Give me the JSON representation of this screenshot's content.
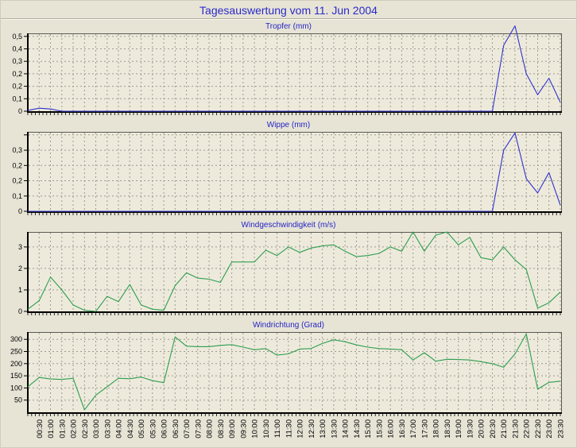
{
  "page": {
    "title": "Tagesauswertung vom 11. Jun 2004",
    "background": "#e7e4d6"
  },
  "colors": {
    "rain_line": "#3232cc",
    "wind_line": "#2f9e4f",
    "title_blue": "#2424c4",
    "grid": "#9c9c8f",
    "plot_bg": "#edeadc",
    "axis": "#000000"
  },
  "x_axis": {
    "start_time": "00:00",
    "interval_minutes": 30,
    "labels": [
      "00:30",
      "01:00",
      "01:30",
      "02:00",
      "02:30",
      "03:00",
      "03:30",
      "04:00",
      "04:30",
      "05:00",
      "05:30",
      "06:00",
      "06:30",
      "07:00",
      "07:30",
      "08:00",
      "08:30",
      "09:00",
      "09:30",
      "10:00",
      "10:30",
      "11:00",
      "11:30",
      "12:00",
      "12:30",
      "13:00",
      "13:30",
      "14:00",
      "14:30",
      "15:00",
      "15:30",
      "16:00",
      "16:30",
      "17:00",
      "17:30",
      "18:00",
      "18:30",
      "19:00",
      "19:30",
      "20:00",
      "20:30",
      "21:00",
      "21:30",
      "22:00",
      "22:30",
      "23:00",
      "23:30"
    ]
  },
  "chart_data": [
    {
      "type": "line",
      "title": "Tropfer (mm)",
      "color_key": "rain_line",
      "ymax": 0.52,
      "yticks": [
        {
          "v": 0,
          "l": "0"
        },
        {
          "v": 0.0833,
          "l": "0,1"
        },
        {
          "v": 0.1667,
          "l": "0,2"
        },
        {
          "v": 0.25,
          "l": "0,2"
        },
        {
          "v": 0.3333,
          "l": "0,3"
        },
        {
          "v": 0.4167,
          "l": "0,4"
        },
        {
          "v": 0.5,
          "l": "0,5"
        }
      ],
      "values": [
        0.005,
        0.02,
        0.015,
        0,
        0,
        0,
        0,
        0,
        0,
        0,
        0,
        0,
        0,
        0,
        0,
        0,
        0,
        0,
        0,
        0,
        0,
        0,
        0,
        0,
        0,
        0,
        0,
        0,
        0,
        0,
        0,
        0,
        0,
        0,
        0,
        0,
        0,
        0,
        0,
        0,
        0,
        0,
        0.44,
        0.57,
        0.25,
        0.11,
        0.22,
        0.06
      ]
    },
    {
      "type": "line",
      "title": "Wippe (mm)",
      "color_key": "rain_line",
      "ymax": 0.39,
      "yticks": [
        {
          "v": 0,
          "l": "0"
        },
        {
          "v": 0.075,
          "l": "0,1"
        },
        {
          "v": 0.15,
          "l": "0,2"
        },
        {
          "v": 0.225,
          "l": "0,2"
        },
        {
          "v": 0.3,
          "l": "0,3"
        },
        {
          "v": 0.375,
          "l": ""
        }
      ],
      "values": [
        0,
        0,
        0,
        0,
        0,
        0,
        0,
        0,
        0,
        0,
        0,
        0,
        0,
        0,
        0,
        0,
        0,
        0,
        0,
        0,
        0,
        0,
        0,
        0,
        0,
        0,
        0,
        0,
        0,
        0,
        0,
        0,
        0,
        0,
        0,
        0,
        0,
        0,
        0,
        0,
        0,
        0,
        0.3,
        0.385,
        0.16,
        0.09,
        0.19,
        0.03
      ]
    },
    {
      "type": "line",
      "title": "Windgeschwindigkeit (m/s)",
      "color_key": "wind_line",
      "ymax": 3.7,
      "yticks": [
        {
          "v": 0,
          "l": "0"
        },
        {
          "v": 1,
          "l": "1"
        },
        {
          "v": 2,
          "l": "2"
        },
        {
          "v": 3,
          "l": "3"
        }
      ],
      "values": [
        0.1,
        0.5,
        1.6,
        1.0,
        0.3,
        0.05,
        0,
        0.7,
        0.45,
        1.25,
        0.3,
        0.1,
        0.05,
        1.2,
        1.8,
        1.55,
        1.5,
        1.35,
        2.3,
        2.3,
        2.3,
        2.85,
        2.6,
        3.0,
        2.75,
        2.95,
        3.05,
        3.1,
        2.8,
        2.55,
        2.6,
        2.7,
        3.0,
        2.8,
        3.7,
        2.8,
        3.55,
        3.7,
        3.1,
        3.45,
        2.5,
        2.4,
        3.0,
        2.4,
        1.95,
        0.15,
        0.4,
        0.9
      ]
    },
    {
      "type": "line",
      "title": "Windrichtung (Grad)",
      "color_key": "wind_line",
      "ymax": 330,
      "yticks": [
        {
          "v": 50,
          "l": "50"
        },
        {
          "v": 100,
          "l": "100"
        },
        {
          "v": 150,
          "l": "150"
        },
        {
          "v": 200,
          "l": "200"
        },
        {
          "v": 250,
          "l": "250"
        },
        {
          "v": 300,
          "l": "300"
        }
      ],
      "values": [
        105,
        143,
        137,
        135,
        140,
        10,
        70,
        105,
        140,
        138,
        145,
        130,
        122,
        310,
        272,
        270,
        270,
        275,
        278,
        268,
        257,
        262,
        235,
        240,
        260,
        262,
        283,
        298,
        290,
        277,
        268,
        262,
        260,
        257,
        215,
        245,
        210,
        218,
        217,
        215,
        208,
        200,
        185,
        240,
        322,
        95,
        123,
        128
      ]
    }
  ]
}
